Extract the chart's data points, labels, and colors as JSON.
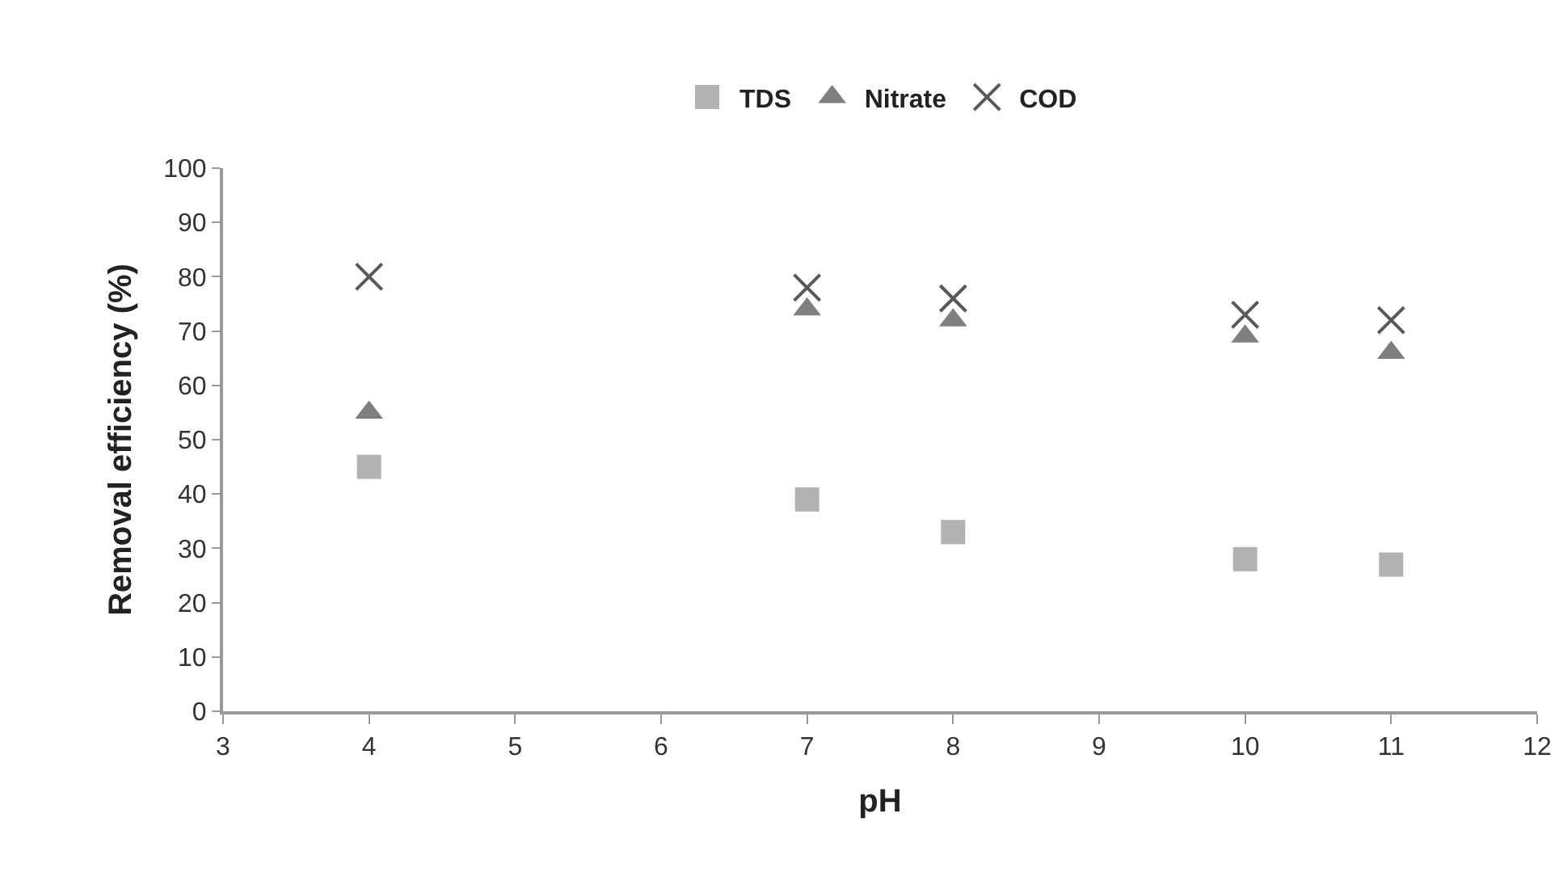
{
  "chart_data": {
    "type": "scatter",
    "xlabel": "pH",
    "ylabel": "Removal efficiency (%)",
    "x": [
      4,
      7,
      8,
      10,
      11
    ],
    "series": [
      {
        "name": "TDS",
        "color": "#b2b2b2",
        "marker": "square",
        "values": [
          45,
          39,
          33,
          28,
          27
        ]
      },
      {
        "name": "Nitrate",
        "color": "#7f7f7f",
        "marker": "triangle",
        "values": [
          55,
          74,
          72,
          69,
          66
        ]
      },
      {
        "name": "COD",
        "color": "#595959",
        "marker": "cross",
        "values": [
          80,
          78,
          76,
          73,
          72
        ]
      }
    ],
    "xlim": [
      3,
      12
    ],
    "xticks": [
      3,
      4,
      5,
      6,
      7,
      8,
      9,
      10,
      11,
      12
    ],
    "ylim": [
      0,
      100
    ],
    "yticks": [
      0,
      10,
      20,
      30,
      40,
      50,
      60,
      70,
      80,
      90,
      100
    ],
    "grid": false,
    "legend": "top"
  }
}
